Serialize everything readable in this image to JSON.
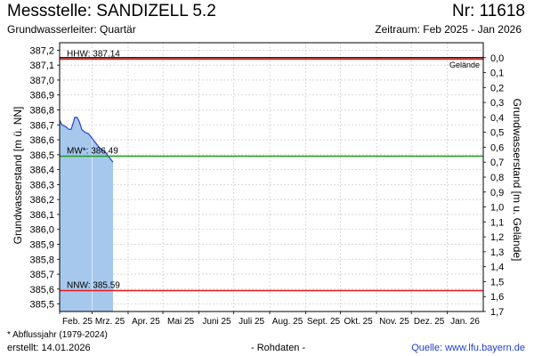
{
  "header": {
    "title": "Messstelle: SANDIZELL 5.2",
    "number": "Nr: 11618",
    "aquifer": "Grundwasserleiter: Quartär",
    "period": "Zeitraum: Feb 2025 - Jan 2026"
  },
  "footer": {
    "footnote": "* Abflussjahr (1979-2024)",
    "created": "erstellt:  14.01.2026",
    "rawdata": "- Rohdaten -",
    "source_label": "Quelle:",
    "source_link": "www.lfu.bayern.de"
  },
  "chart_data": {
    "type": "area",
    "ylabel": "Grundwasserstand [m ü. NN]",
    "y2label": "Grundwasserstand [m u. Gelände]",
    "ylim": [
      385.45,
      387.25
    ],
    "y2lim": [
      -0.1,
      1.7
    ],
    "ground_level": 387.15,
    "yticks": [
      {
        "v": 387.2,
        "label": "387,2"
      },
      {
        "v": 387.1,
        "label": "387,1"
      },
      {
        "v": 387.0,
        "label": "387,0"
      },
      {
        "v": 386.9,
        "label": "386,9"
      },
      {
        "v": 386.8,
        "label": "386,8"
      },
      {
        "v": 386.7,
        "label": "386,7"
      },
      {
        "v": 386.6,
        "label": "386,6"
      },
      {
        "v": 386.5,
        "label": "386,5"
      },
      {
        "v": 386.4,
        "label": "386,4"
      },
      {
        "v": 386.3,
        "label": "386,3"
      },
      {
        "v": 386.2,
        "label": "386,2"
      },
      {
        "v": 386.1,
        "label": "386,1"
      },
      {
        "v": 386.0,
        "label": "386,0"
      },
      {
        "v": 385.9,
        "label": "385,9"
      },
      {
        "v": 385.8,
        "label": "385,8"
      },
      {
        "v": 385.7,
        "label": "385,7"
      },
      {
        "v": 385.6,
        "label": "385,6"
      },
      {
        "v": 385.5,
        "label": "385,5"
      }
    ],
    "y2ticks": [
      {
        "v": 0.0,
        "label": "0,0"
      },
      {
        "v": 0.1,
        "label": "0,1"
      },
      {
        "v": 0.2,
        "label": "0,2"
      },
      {
        "v": 0.3,
        "label": "0,3"
      },
      {
        "v": 0.4,
        "label": "0,4"
      },
      {
        "v": 0.5,
        "label": "0,5"
      },
      {
        "v": 0.6,
        "label": "0,6"
      },
      {
        "v": 0.7,
        "label": "0,7"
      },
      {
        "v": 0.8,
        "label": "0,8"
      },
      {
        "v": 0.9,
        "label": "0,9"
      },
      {
        "v": 1.0,
        "label": "1,0"
      },
      {
        "v": 1.1,
        "label": "1,1"
      },
      {
        "v": 1.2,
        "label": "1,2"
      },
      {
        "v": 1.3,
        "label": "1,3"
      },
      {
        "v": 1.4,
        "label": "1,4"
      },
      {
        "v": 1.5,
        "label": "1,5"
      },
      {
        "v": 1.6,
        "label": "1,6"
      },
      {
        "v": 1.7,
        "label": "1,7"
      }
    ],
    "x_start": "2025-02-01",
    "x_end": "2026-01-31",
    "xticks": [
      {
        "date": "2025-02-01",
        "label": "Feb. 25"
      },
      {
        "date": "2025-03-01",
        "label": "Mrz. 25"
      },
      {
        "date": "2025-04-01",
        "label": "Apr. 25"
      },
      {
        "date": "2025-05-01",
        "label": "Mai 25"
      },
      {
        "date": "2025-06-01",
        "label": "Juni 25"
      },
      {
        "date": "2025-07-01",
        "label": "Juli 25"
      },
      {
        "date": "2025-08-01",
        "label": "Aug. 25"
      },
      {
        "date": "2025-09-01",
        "label": "Sept. 25"
      },
      {
        "date": "2025-10-01",
        "label": "Okt. 25"
      },
      {
        "date": "2025-11-01",
        "label": "Nov. 25"
      },
      {
        "date": "2025-12-01",
        "label": "Dez. 25"
      },
      {
        "date": "2026-01-01",
        "label": "Jan. 26"
      }
    ],
    "reference_lines": [
      {
        "label": "HHW: 387.14",
        "value": 387.14,
        "color": "#e8191b"
      },
      {
        "label": "MW*: 386.49",
        "value": 386.49,
        "color": "#1e9a1e"
      },
      {
        "label": "NNW: 385.59",
        "value": 385.59,
        "color": "#e8191b"
      }
    ],
    "ground_label": "Gelände",
    "grid": true,
    "series": [
      {
        "line_color": "#2a3fd4",
        "fill_color": "#a6c8ec",
        "points": [
          {
            "x": "2025-01-31",
            "y": 386.73
          },
          {
            "x": "2025-02-03",
            "y": 386.7
          },
          {
            "x": "2025-02-06",
            "y": 386.69
          },
          {
            "x": "2025-02-09",
            "y": 386.67
          },
          {
            "x": "2025-02-11",
            "y": 386.67
          },
          {
            "x": "2025-02-13",
            "y": 386.72
          },
          {
            "x": "2025-02-14",
            "y": 386.75
          },
          {
            "x": "2025-02-16",
            "y": 386.75
          },
          {
            "x": "2025-02-18",
            "y": 386.72
          },
          {
            "x": "2025-02-20",
            "y": 386.67
          },
          {
            "x": "2025-02-23",
            "y": 386.65
          },
          {
            "x": "2025-02-26",
            "y": 386.64
          },
          {
            "x": "2025-03-01",
            "y": 386.61
          },
          {
            "x": "2025-03-04",
            "y": 386.58
          },
          {
            "x": "2025-03-07",
            "y": 386.55
          },
          {
            "x": "2025-03-10",
            "y": 386.53
          },
          {
            "x": "2025-03-13",
            "y": 386.51
          },
          {
            "x": "2025-03-16",
            "y": 386.48
          },
          {
            "x": "2025-03-19",
            "y": 386.45
          }
        ]
      }
    ]
  }
}
